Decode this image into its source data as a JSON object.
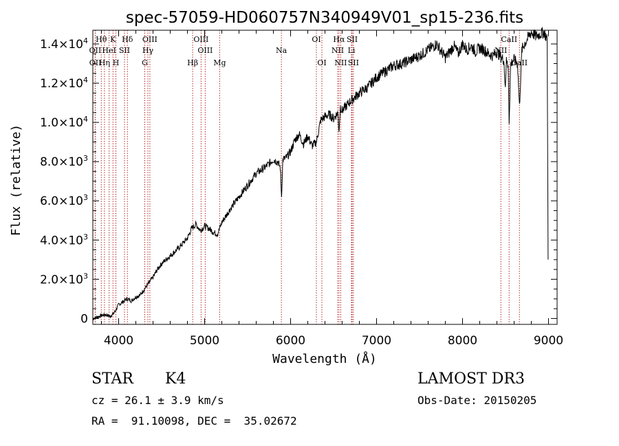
{
  "chart_data": {
    "type": "line",
    "title": "spec-57059-HD060757N340949V01_sp15-236.fits",
    "xlabel": "Wavelength (Å)",
    "ylabel": "Flux (relative)",
    "xlim": [
      3700,
      9100
    ],
    "ylim": [
      -300,
      14700
    ],
    "x_ticks": [
      4000,
      5000,
      6000,
      7000,
      8000,
      9000
    ],
    "x_tick_labels": [
      "4000",
      "5000",
      "6000",
      "7000",
      "8000",
      "9000"
    ],
    "y_ticks": [
      0,
      2000,
      4000,
      6000,
      8000,
      10000,
      12000,
      14000
    ],
    "y_tick_labels": [
      {
        "mantissa": "0",
        "exp": ""
      },
      {
        "mantissa": "2.0×10",
        "exp": "3"
      },
      {
        "mantissa": "4.0×10",
        "exp": "3"
      },
      {
        "mantissa": "6.0×10",
        "exp": "3"
      },
      {
        "mantissa": "8.0×10",
        "exp": "3"
      },
      {
        "mantissa": "1.0×10",
        "exp": "4"
      },
      {
        "mantissa": "1.2×10",
        "exp": "4"
      },
      {
        "mantissa": "1.4×10",
        "exp": "4"
      }
    ],
    "series": [
      {
        "name": "spectrum",
        "x": [
          3700,
          3800,
          3850,
          3900,
          3950,
          4000,
          4050,
          4100,
          4150,
          4200,
          4250,
          4300,
          4350,
          4400,
          4450,
          4500,
          4600,
          4700,
          4800,
          4850,
          4900,
          4950,
          5000,
          5050,
          5100,
          5150,
          5200,
          5300,
          5400,
          5500,
          5600,
          5700,
          5800,
          5850,
          5880,
          5895,
          5910,
          5950,
          6000,
          6050,
          6100,
          6150,
          6200,
          6250,
          6300,
          6350,
          6400,
          6450,
          6500,
          6550,
          6562,
          6580,
          6600,
          6700,
          6800,
          6900,
          7000,
          7100,
          7200,
          7300,
          7400,
          7500,
          7600,
          7700,
          7800,
          7850,
          7900,
          7950,
          8000,
          8050,
          8100,
          8150,
          8200,
          8250,
          8300,
          8350,
          8400,
          8450,
          8480,
          8498,
          8510,
          8530,
          8542,
          8560,
          8600,
          8640,
          8662,
          8690,
          8720,
          8760,
          8800,
          8850,
          8900,
          8950,
          8985,
          8995
        ],
        "y": [
          0,
          150,
          200,
          100,
          300,
          700,
          850,
          1000,
          900,
          1100,
          1200,
          1500,
          1800,
          2100,
          2500,
          2800,
          3200,
          3600,
          4100,
          4600,
          4800,
          4500,
          4700,
          4600,
          4400,
          4300,
          4900,
          5600,
          6200,
          6800,
          7400,
          7700,
          8100,
          8000,
          7700,
          6200,
          8100,
          8200,
          8500,
          9100,
          9400,
          8900,
          9300,
          8800,
          9000,
          10100,
          10300,
          10400,
          10200,
          10500,
          9500,
          10800,
          10600,
          11100,
          11500,
          11800,
          12300,
          12600,
          12900,
          13000,
          13200,
          13400,
          13700,
          14000,
          13300,
          13600,
          13900,
          13500,
          14000,
          13700,
          13900,
          13600,
          13800,
          13700,
          13500,
          13400,
          13600,
          13300,
          13200,
          11800,
          13100,
          12900,
          10000,
          13000,
          13200,
          13000,
          10800,
          13700,
          14000,
          14300,
          14600,
          14400,
          14500,
          14600,
          14200,
          3000
        ]
      }
    ],
    "lines": [
      {
        "label": "Hθ",
        "x": 3798,
        "row": 0
      },
      {
        "label": "K",
        "x": 3934,
        "row": 0
      },
      {
        "label": "Hδ",
        "x": 4102,
        "row": 0
      },
      {
        "label": "OIII",
        "x": 4363,
        "row": 0
      },
      {
        "label": "OIII",
        "x": 4959,
        "row": 0
      },
      {
        "label": "OI",
        "x": 6300,
        "row": 0
      },
      {
        "label": "Hα",
        "x": 6563,
        "row": 0
      },
      {
        "label": "SII",
        "x": 6716,
        "row": 0
      },
      {
        "label": "CaII",
        "x": 8542,
        "row": 0
      },
      {
        "label": "OII",
        "x": 3727,
        "row": 1
      },
      {
        "label": "HeI",
        "x": 3889,
        "row": 1
      },
      {
        "label": "SII",
        "x": 4068,
        "row": 1
      },
      {
        "label": "Hγ",
        "x": 4340,
        "row": 1
      },
      {
        "label": "OIII",
        "x": 5007,
        "row": 1
      },
      {
        "label": "Na",
        "x": 5893,
        "row": 1
      },
      {
        "label": "NII",
        "x": 6548,
        "row": 1
      },
      {
        "label": "Li",
        "x": 6708,
        "row": 1
      },
      {
        "label": "NII",
        "x": 8446,
        "row": 1
      },
      {
        "label": "OII",
        "x": 3729,
        "row": 2
      },
      {
        "label": "Hη",
        "x": 3835,
        "row": 2
      },
      {
        "label": "H",
        "x": 3968,
        "row": 2
      },
      {
        "label": "G",
        "x": 4304,
        "row": 2
      },
      {
        "label": "Hβ",
        "x": 4861,
        "row": 2
      },
      {
        "label": "Mg",
        "x": 5175,
        "row": 2
      },
      {
        "label": "OI",
        "x": 6364,
        "row": 2
      },
      {
        "label": "NII",
        "x": 6583,
        "row": 2
      },
      {
        "label": "SII",
        "x": 6731,
        "row": 2
      },
      {
        "label": "CaII",
        "x": 8662,
        "row": 2
      }
    ]
  },
  "info": {
    "class_label": "STAR",
    "subclass": "K4",
    "survey": "LAMOST DR3",
    "redshift": "cz = 26.1 ± 3.9 km/s",
    "obs_date": "Obs-Date: 20150205",
    "coords": "RA =  91.10098, DEC =  35.02672"
  }
}
